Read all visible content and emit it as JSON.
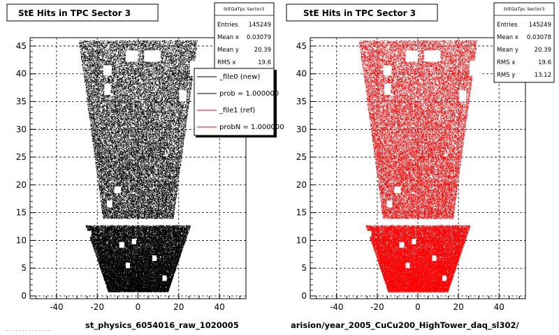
{
  "chart_data": [
    {
      "type": "scatter",
      "title": "StE Hits in TPC Sector 3",
      "xlabel": "st_physics_6054016_raw_1020005",
      "xlim": [
        -53,
        53
      ],
      "ylim": [
        -0.5,
        46.5
      ],
      "xticks": [
        "-40",
        "-20",
        "0",
        "20",
        "40"
      ],
      "yticks": [
        "0",
        "5",
        "10",
        "15",
        "20",
        "25",
        "30",
        "35",
        "40",
        "45"
      ],
      "grid": true,
      "point_color": "#000000",
      "stats": {
        "name": "StEQaTpc Sector3",
        "rows": [
          {
            "label": "Entries",
            "value": "145249"
          },
          {
            "label": "Mean x",
            "value": "0.03079"
          },
          {
            "label": "Mean y",
            "value": "20.39"
          },
          {
            "label": "RMS x",
            "value": "19.6"
          }
        ]
      },
      "legend": {
        "placement": "top-right",
        "entries": [
          {
            "label": "_file0 (new)",
            "color": "#000000"
          },
          {
            "label": "prob = 1.000000",
            "color": "#000000"
          },
          {
            "label": "_file1 (ref)",
            "color": "#ff0000"
          },
          {
            "label": "probN = 1.000000",
            "color": "#ff0000"
          }
        ]
      },
      "footer_left": "- - - - - - - - - - - - - -"
    },
    {
      "type": "scatter",
      "title": "StE Hits in TPC Sector 3",
      "xlabel": "arision/year_2005_CuCu200_HighTower_daq_sl302/",
      "xlim": [
        -53,
        53
      ],
      "ylim": [
        -0.5,
        46.5
      ],
      "xticks": [
        "-40",
        "-20",
        "0",
        "20",
        "40"
      ],
      "yticks": [
        "0",
        "5",
        "10",
        "15",
        "20",
        "25",
        "30",
        "35",
        "40",
        "45"
      ],
      "grid": true,
      "point_color": "#ff0000",
      "stats": {
        "name": "StEQaTpc Sector3",
        "rows": [
          {
            "label": "Entries",
            "value": "145249"
          },
          {
            "label": "Mean x",
            "value": "0.03078"
          },
          {
            "label": "Mean y",
            "value": "20.39"
          },
          {
            "label": "RMS x",
            "value": "19.6"
          },
          {
            "label": "RMS y",
            "value": "13.12"
          }
        ]
      }
    }
  ]
}
